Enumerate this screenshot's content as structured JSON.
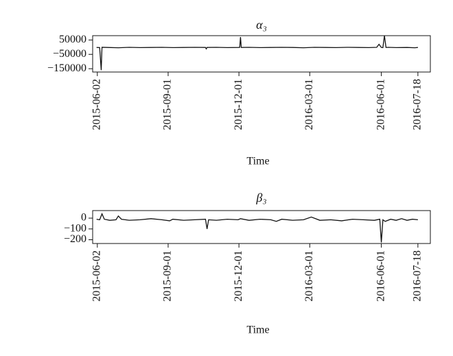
{
  "chart_data": [
    {
      "type": "line",
      "title": "α₃",
      "xlabel": "Time",
      "color": "#111111",
      "x": [
        "2015-06-01",
        "2015-06-05",
        "2015-06-07",
        "2015-06-08",
        "2015-06-15",
        "2015-06-29",
        "2015-07-13",
        "2015-07-27",
        "2015-08-10",
        "2015-08-24",
        "2015-09-07",
        "2015-09-21",
        "2015-10-05",
        "2015-10-19",
        "2015-10-20",
        "2015-10-21",
        "2015-11-02",
        "2015-11-16",
        "2015-11-30",
        "2015-12-02",
        "2015-12-03",
        "2015-12-04",
        "2015-12-14",
        "2015-12-28",
        "2016-01-11",
        "2016-01-25",
        "2016-02-08",
        "2016-02-22",
        "2016-03-07",
        "2016-03-21",
        "2016-04-04",
        "2016-04-18",
        "2016-05-02",
        "2016-05-16",
        "2016-05-26",
        "2016-05-29",
        "2016-06-01",
        "2016-06-03",
        "2016-06-05",
        "2016-06-07",
        "2016-06-10",
        "2016-06-20",
        "2016-07-04",
        "2016-07-14",
        "2016-07-18"
      ],
      "values": [
        -2000,
        -3000,
        -160000,
        -1000,
        -2000,
        -4000,
        -1000,
        -3000,
        -2000,
        -1000,
        -3000,
        -2000,
        -1000,
        -2000,
        -12000,
        -2000,
        -1000,
        -3000,
        -2000,
        -1000,
        70000,
        -2000,
        -1000,
        -3000,
        -2000,
        -1000,
        -2000,
        -4000,
        -1000,
        -2000,
        -3000,
        -1000,
        -2000,
        -3000,
        -1000,
        20000,
        -2000,
        -3000,
        80000,
        -2000,
        -1000,
        -3000,
        -2000,
        -4000,
        -2000
      ],
      "xlim": [
        "2015-05-27",
        "2016-08-03"
      ],
      "xticks": [
        "2015-06-02",
        "2015-09-01",
        "2015-12-01",
        "2016-03-01",
        "2016-06-01",
        "2016-07-18"
      ],
      "ylim": [
        -173000,
        80000
      ],
      "yticks": [
        {
          "value": 50000,
          "label": "50000"
        },
        {
          "value": -50000,
          "label": "−50000"
        },
        {
          "value": -150000,
          "label": "−150000"
        }
      ]
    },
    {
      "type": "line",
      "title": "β₃",
      "xlabel": "Time",
      "color": "#111111",
      "x": [
        "2015-06-01",
        "2015-06-05",
        "2015-06-08",
        "2015-06-11",
        "2015-06-18",
        "2015-06-26",
        "2015-06-29",
        "2015-07-03",
        "2015-07-13",
        "2015-07-27",
        "2015-08-10",
        "2015-08-24",
        "2015-09-03",
        "2015-09-07",
        "2015-09-21",
        "2015-10-05",
        "2015-10-19",
        "2015-10-21",
        "2015-10-23",
        "2015-11-02",
        "2015-11-16",
        "2015-11-30",
        "2015-12-03",
        "2015-12-14",
        "2015-12-28",
        "2016-01-11",
        "2016-01-18",
        "2016-01-25",
        "2016-02-08",
        "2016-02-22",
        "2016-03-03",
        "2016-03-14",
        "2016-03-28",
        "2016-04-11",
        "2016-04-25",
        "2016-05-09",
        "2016-05-23",
        "2016-05-30",
        "2016-06-01",
        "2016-06-03",
        "2016-06-06",
        "2016-06-13",
        "2016-06-20",
        "2016-06-27",
        "2016-07-04",
        "2016-07-11",
        "2016-07-18"
      ],
      "values": [
        -10,
        -15,
        40,
        -10,
        -20,
        -15,
        20,
        -10,
        -20,
        -15,
        -5,
        -15,
        -25,
        -10,
        -20,
        -15,
        -10,
        -100,
        -15,
        -20,
        -10,
        -15,
        -5,
        -20,
        -10,
        -15,
        -30,
        -10,
        -20,
        -15,
        10,
        -20,
        -15,
        -25,
        -10,
        -15,
        -20,
        -10,
        -225,
        -15,
        -30,
        -10,
        -20,
        -5,
        -20,
        -10,
        -15
      ],
      "xlim": [
        "2015-05-27",
        "2016-08-03"
      ],
      "xticks": [
        "2015-06-02",
        "2015-09-01",
        "2015-12-01",
        "2016-03-01",
        "2016-06-01",
        "2016-07-18"
      ],
      "ylim": [
        -235,
        70
      ],
      "yticks": [
        0,
        {
          "value": -100,
          "label": "−100"
        },
        {
          "value": -200,
          "label": "−200"
        }
      ]
    }
  ]
}
